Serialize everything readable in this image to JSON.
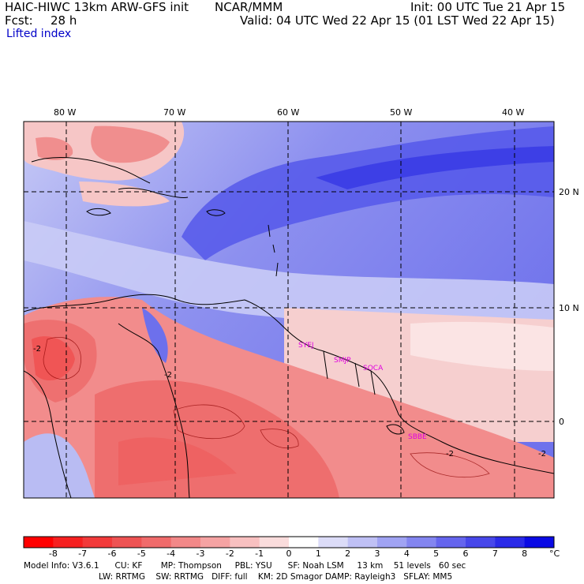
{
  "header": {
    "title": "HAIC-HIWC 13km ARW-GFS init",
    "org": "NCAR/MMM",
    "init": "Init: 00 UTC Tue 21 Apr 15",
    "fcst_label": "Fcst:",
    "fcst_value": "28 h",
    "valid": "Valid: 04 UTC Wed 22 Apr 15 (01 LST Wed 22 Apr 15)",
    "field": "Lifted index"
  },
  "map": {
    "lon_labels": [
      "80 W",
      "70 W",
      "60 W",
      "50 W",
      "40 W"
    ],
    "lat_labels": [
      "20 N",
      "10 N",
      "0"
    ],
    "stations": [
      "SYEJ",
      "SMJP",
      "SOCA",
      "SBBE"
    ],
    "contour_labels": [
      "-2",
      "-2",
      "-2",
      "-2"
    ],
    "colors": {
      "negative": "#f08a8a",
      "positive": "#6b6ef0",
      "station": "#e000e0"
    }
  },
  "colorbar": {
    "labels": [
      "-8",
      "-7",
      "-6",
      "-5",
      "-4",
      "-3",
      "-2",
      "-1",
      "0",
      "1",
      "2",
      "3",
      "4",
      "5",
      "6",
      "7",
      "8"
    ],
    "unit": "°C",
    "colors": [
      "#ff0000",
      "#f62020",
      "#f23a3a",
      "#ee5353",
      "#f06b6b",
      "#f28888",
      "#f5a3a3",
      "#f8c0c0",
      "#fadcdc",
      "#ffffff",
      "#dcdcf8",
      "#bfc0f5",
      "#a0a3f3",
      "#8385f0",
      "#6565ee",
      "#4747ea",
      "#2a2ae8",
      "#0a0ae5"
    ]
  },
  "footer": {
    "line1": "Model Info: V3.6.1      CU: KF       MP: Thompson     PBL: YSU      SF: Noah LSM     13 km    51 levels   60 sec",
    "line2": "LW: RRTMG    SW: RRTMG   DIFF: full    KM: 2D Smagor DAMP: Rayleigh3   SFLAY: MM5"
  }
}
